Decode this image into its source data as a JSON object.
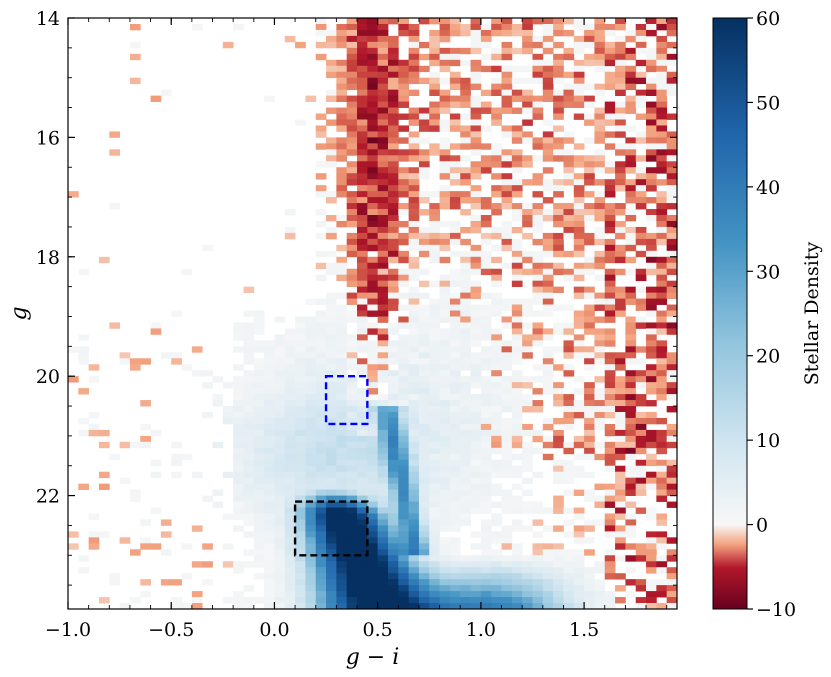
{
  "chart_data": {
    "type": "heatmap",
    "xlabel": "g − i",
    "ylabel": "g",
    "xlim": [
      -1.0,
      1.95
    ],
    "ylim": [
      23.9,
      14.0
    ],
    "y_inverted": true,
    "x_ticks": [
      "−1.0",
      "−0.5",
      "0.0",
      "0.5",
      "1.0",
      "1.5"
    ],
    "y_ticks": [
      "14",
      "16",
      "18",
      "20",
      "22"
    ],
    "colorbar": {
      "label": "Stellar Density",
      "range": [
        -10,
        60
      ],
      "ticks": [
        "−10",
        "0",
        "10",
        "20",
        "30",
        "40",
        "50",
        "60"
      ],
      "colormap": "RdBu"
    },
    "boxes": [
      {
        "name": "blue-box",
        "color": "#0000ff",
        "x": [
          0.25,
          0.45
        ],
        "y": [
          20.0,
          20.8
        ],
        "style": "dashed"
      },
      {
        "name": "black-box",
        "color": "#000000",
        "x": [
          0.1,
          0.45
        ],
        "y": [
          22.1,
          23.0
        ],
        "style": "dashed"
      }
    ]
  }
}
